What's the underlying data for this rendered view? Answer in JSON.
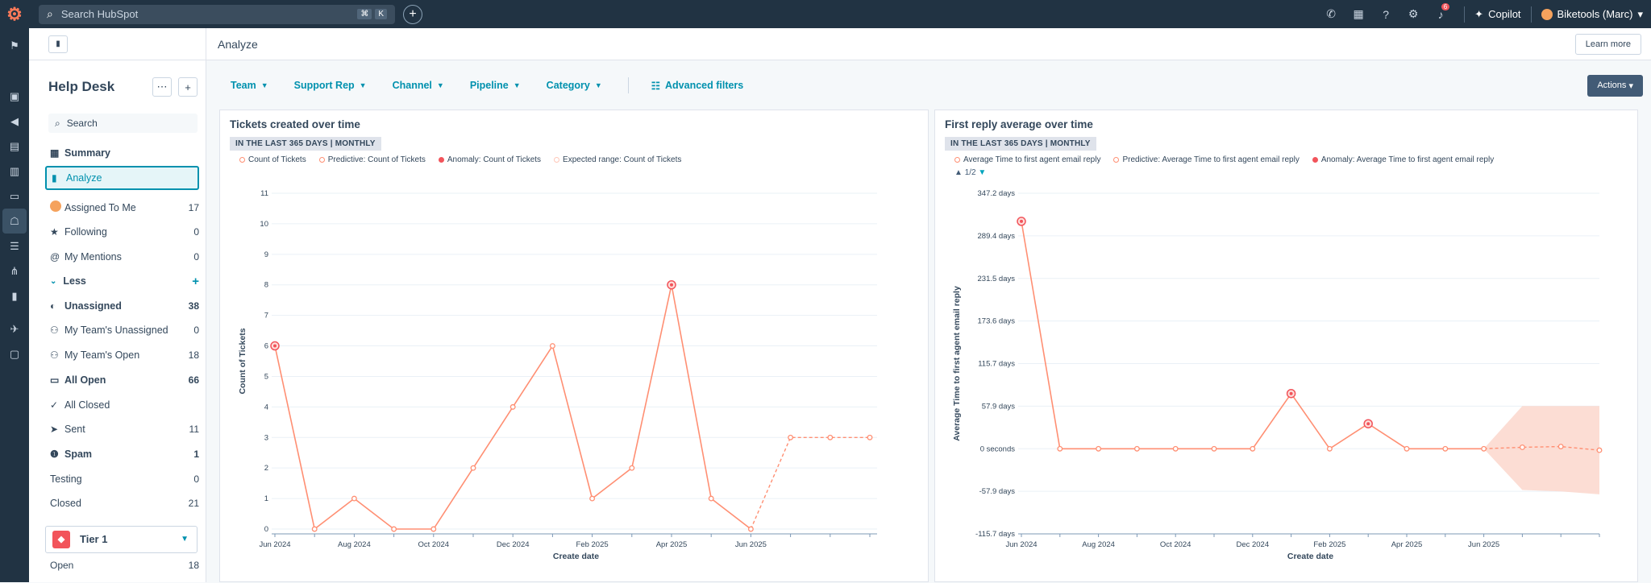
{
  "topbar": {
    "search_placeholder": "Search HubSpot",
    "shortcut_keys": [
      "⌘",
      "K"
    ],
    "notification_count": "6",
    "copilot_label": "Copilot",
    "account_label": "Biketools (Marc)"
  },
  "sidebar": {
    "title": "Help Desk",
    "search_placeholder": "Search",
    "top_items": [
      {
        "label": "Summary"
      },
      {
        "label": "Analyze"
      }
    ],
    "views": [
      {
        "label": "Assigned To Me",
        "count": "17"
      },
      {
        "label": "Following",
        "count": "0"
      },
      {
        "label": "My Mentions",
        "count": "0"
      }
    ],
    "less_label": "Less",
    "more_views": [
      {
        "label": "Unassigned",
        "count": "38"
      },
      {
        "label": "My Team's Unassigned",
        "count": "0"
      },
      {
        "label": "My Team's Open",
        "count": "18"
      },
      {
        "label": "All Open",
        "count": "66"
      },
      {
        "label": "All Closed",
        "count": ""
      },
      {
        "label": "Sent",
        "count": "11"
      },
      {
        "label": "Spam",
        "count": "1"
      },
      {
        "label": "Testing",
        "count": "0"
      },
      {
        "label": "Closed",
        "count": "21"
      }
    ],
    "tier_label": "Tier 1",
    "tier_open_label": "Open",
    "tier_open_count": "18"
  },
  "main": {
    "page_title": "Analyze",
    "learn_more": "Learn more",
    "filters": [
      "Team",
      "Support Rep",
      "Channel",
      "Pipeline",
      "Category"
    ],
    "advanced_filters": "Advanced filters",
    "actions": "Actions"
  },
  "colors": {
    "series": "#ff8f73",
    "anomaly": "#f2545b",
    "expected_range": "#fcd9cf",
    "accent": "#0091ae",
    "dark_nav": "#213343"
  },
  "chart_data": [
    {
      "type": "line",
      "title": "Tickets created over time",
      "subtitle": "IN THE LAST 365 DAYS | MONTHLY",
      "xlabel": "Create date",
      "ylabel": "Count of Tickets",
      "legend": [
        "Count of Tickets",
        "Predictive: Count of Tickets",
        "Anomaly: Count of Tickets",
        "Expected range: Count of Tickets"
      ],
      "legend_position": "top-left",
      "ylim": [
        0,
        11
      ],
      "y_ticks": [
        "0",
        "1",
        "2",
        "3",
        "4",
        "5",
        "6",
        "7",
        "8",
        "9",
        "10",
        "11"
      ],
      "x_ticks": [
        "Jun 2024",
        "Aug 2024",
        "Oct 2024",
        "Dec 2024",
        "Feb 2025",
        "Apr 2025",
        "Jun 2025"
      ],
      "series": [
        {
          "name": "Count of Tickets",
          "values": [
            6,
            0,
            1,
            0,
            0,
            2,
            4,
            6,
            1,
            2,
            8,
            1,
            0
          ]
        },
        {
          "name": "Predictive: Count of Tickets",
          "values": [
            null,
            null,
            null,
            null,
            null,
            null,
            null,
            null,
            null,
            null,
            null,
            null,
            0,
            3,
            3,
            3
          ]
        }
      ],
      "anomalies": [
        {
          "index": 0,
          "value": 6
        },
        {
          "index": 10,
          "value": 8
        }
      ]
    },
    {
      "type": "line",
      "title": "First reply average over time",
      "subtitle": "IN THE LAST 365 DAYS | MONTHLY",
      "xlabel": "Create date",
      "ylabel": "Average Time to first agent email reply",
      "legend": [
        "Average Time to first agent email reply",
        "Predictive: Average Time to first agent email reply",
        "Anomaly: Average Time to first agent email reply"
      ],
      "legend_position": "top-left",
      "legend_page": "1/2",
      "ylim": [
        -115.7,
        347.2
      ],
      "y_ticks": [
        "347.2 days",
        "289.4 days",
        "231.5 days",
        "173.6 days",
        "115.7 days",
        "57.9 days",
        "0 seconds",
        "-57.9 days",
        "-115.7 days"
      ],
      "x_ticks": [
        "Jun 2024",
        "Aug 2024",
        "Oct 2024",
        "Dec 2024",
        "Feb 2025",
        "Apr 2025",
        "Jun 2025"
      ],
      "series": [
        {
          "name": "Average Time to first agent email reply",
          "values": [
            309,
            0,
            0,
            0,
            0,
            0,
            0,
            75,
            0,
            34,
            0,
            0,
            0
          ]
        },
        {
          "name": "Predictive: Average Time to first agent email reply",
          "values": [
            null,
            null,
            null,
            null,
            null,
            null,
            null,
            null,
            null,
            null,
            null,
            null,
            0,
            2,
            3,
            -2
          ]
        }
      ],
      "expected_range": {
        "upper": [
          0,
          58,
          58,
          58
        ],
        "lower": [
          0,
          -56,
          -58,
          -62
        ]
      },
      "anomalies": [
        {
          "index": 0,
          "value": 309
        },
        {
          "index": 7,
          "value": 75
        },
        {
          "index": 9,
          "value": 34
        }
      ]
    }
  ]
}
